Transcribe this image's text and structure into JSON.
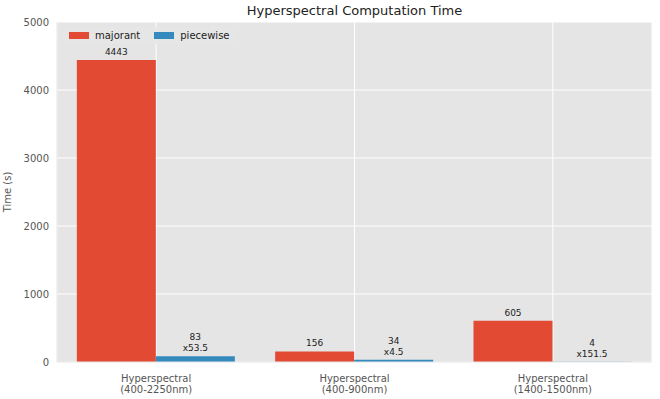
{
  "chart_data": {
    "type": "bar",
    "title": "Hyperspectral Computation Time",
    "y_label": "Time (s)",
    "categories": [
      "Hyperspectral\n(400-2250nm)",
      "Hyperspectral\n(400-900nm)",
      "Hyperspectral\n(1400-1500nm)"
    ],
    "series": [
      {
        "name": "majorant",
        "color": "#E24A33",
        "values": [
          4443,
          156,
          605
        ]
      },
      {
        "name": "piecewise",
        "color": "#348ABD",
        "values": [
          83,
          34,
          4
        ],
        "annotations": [
          "x53.5",
          "x4.5",
          "x151.5"
        ]
      }
    ],
    "ylim": [
      0,
      5000
    ],
    "yticks": [
      0,
      1000,
      2000,
      3000,
      4000,
      5000
    ],
    "grid": true,
    "legend": "upper left",
    "data_labels": true
  }
}
